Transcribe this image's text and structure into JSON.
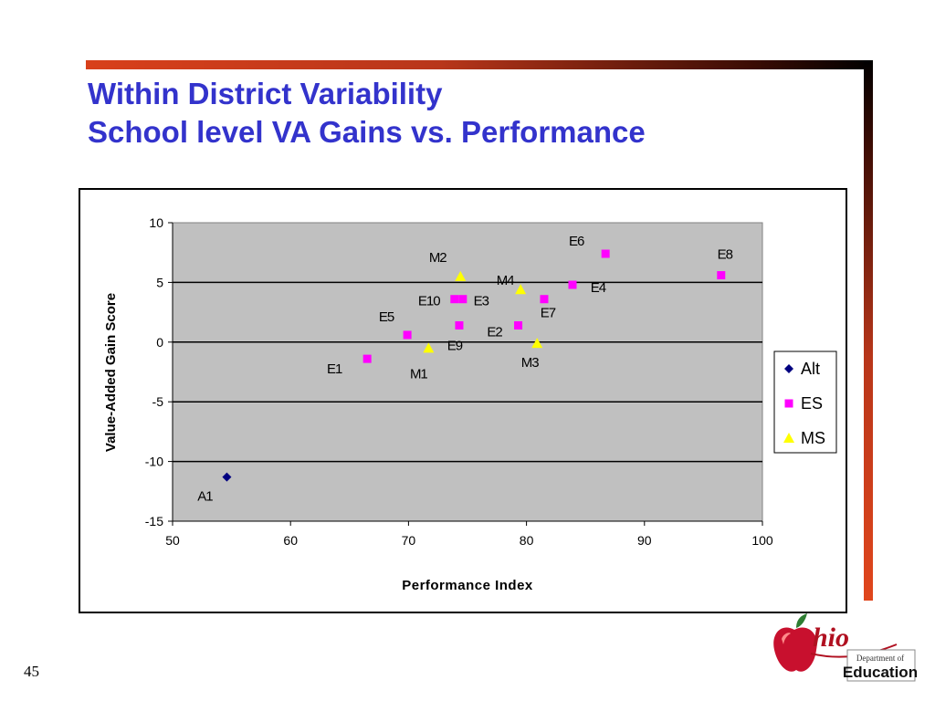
{
  "slide": {
    "title_line1": "Within District Variability",
    "title_line2": "School level VA Gains vs. Performance",
    "slide_number": "45"
  },
  "logo": {
    "state": "hio",
    "dept_text": "Department of",
    "org_text": "Education"
  },
  "colors": {
    "title": "#3333cc",
    "plot_bg": "#c0c0c0",
    "alt": "#000080",
    "es": "#ff00ff",
    "ms": "#ffff00"
  },
  "chart_data": {
    "type": "scatter",
    "xlabel": "Performance Index",
    "ylabel": "Value-Added Gain Score",
    "xlim": [
      50,
      100
    ],
    "ylim": [
      -15,
      10
    ],
    "xticks": [
      "50",
      "60",
      "70",
      "80",
      "90",
      "100"
    ],
    "yticks": [
      "10",
      "5",
      "0",
      "-5",
      "-10",
      "-15"
    ],
    "grid": "horizontal",
    "legend_position": "right",
    "series": [
      {
        "name": "Alt",
        "marker": "diamond",
        "color": "#000080",
        "points": [
          {
            "label": "A1",
            "x": 54.6,
            "y": -11.3
          }
        ]
      },
      {
        "name": "ES",
        "marker": "square",
        "color": "#ff00ff",
        "points": [
          {
            "label": "E1",
            "x": 66.5,
            "y": -1.4
          },
          {
            "label": "E2",
            "x": 79.3,
            "y": 1.4
          },
          {
            "label": "E3",
            "x": 74.6,
            "y": 3.6
          },
          {
            "label": "E4",
            "x": 83.9,
            "y": 4.8
          },
          {
            "label": "E5",
            "x": 69.9,
            "y": 0.6
          },
          {
            "label": "E6",
            "x": 86.7,
            "y": 7.4
          },
          {
            "label": "E7",
            "x": 81.5,
            "y": 3.6
          },
          {
            "label": "E8",
            "x": 96.5,
            "y": 5.6
          },
          {
            "label": "E9",
            "x": 74.3,
            "y": 1.4
          },
          {
            "label": "E10",
            "x": 73.9,
            "y": 3.6
          }
        ]
      },
      {
        "name": "MS",
        "marker": "triangle",
        "color": "#ffff00",
        "points": [
          {
            "label": "M1",
            "x": 71.7,
            "y": -0.5
          },
          {
            "label": "M2",
            "x": 74.4,
            "y": 5.5
          },
          {
            "label": "M3",
            "x": 80.9,
            "y": -0.1
          },
          {
            "label": "M4",
            "x": 79.5,
            "y": 4.4
          }
        ]
      }
    ]
  }
}
